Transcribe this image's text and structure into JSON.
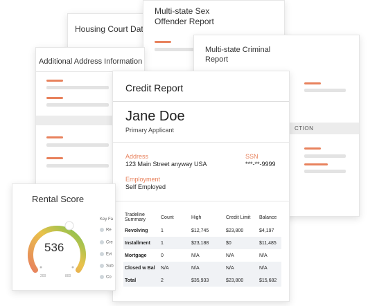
{
  "cards": {
    "housing": {
      "title": "Housing Court Data"
    },
    "sex_offender": {
      "title_line1": "Multi-state Sex",
      "title_line2": "Offender Report"
    },
    "additional": {
      "title": "Additional Address Information"
    },
    "criminal": {
      "title_line1": "Multi-state Criminal",
      "title_line2": "Report",
      "band_text": "CTION"
    }
  },
  "credit_report": {
    "title": "Credit Report",
    "applicant_name": "Jane Doe",
    "applicant_role": "Primary Applicant",
    "address_label": "Address",
    "address_value": "123 Main Street anyway USA",
    "ssn_label": "SSN",
    "ssn_value": "***-**-9999",
    "employment_label": "Employment",
    "employment_value": "Self Employed",
    "table": {
      "headers": [
        "Tradeline Summary",
        "Count",
        "High",
        "Credit Limit",
        "Balance"
      ],
      "rows": [
        [
          "Revolving",
          "1",
          "$12,745",
          "$23,800",
          "$4,197"
        ],
        [
          "Installment",
          "1",
          "$23,188",
          "$0",
          "$11,485"
        ],
        [
          "Mortgage",
          "0",
          "N/A",
          "N/A",
          "N/A"
        ],
        [
          "Closed w Bal",
          "N/A",
          "N/A",
          "N/A",
          "N/A"
        ],
        [
          "Total",
          "2",
          "$35,933",
          "$23,800",
          "$15,682"
        ]
      ]
    }
  },
  "rental_score": {
    "title": "Rental Score",
    "score": "536",
    "gauge_min": "200",
    "gauge_max": "800",
    "score_fraction": 0.56,
    "key_label": "Key Fa",
    "key_items": [
      "Re",
      "Cre",
      "Evi",
      "Sub",
      "Co"
    ]
  },
  "colors": {
    "accent": "#e8825d",
    "gauge_low": "#e8825d",
    "gauge_mid": "#e9c24b",
    "gauge_high": "#79c24f"
  }
}
